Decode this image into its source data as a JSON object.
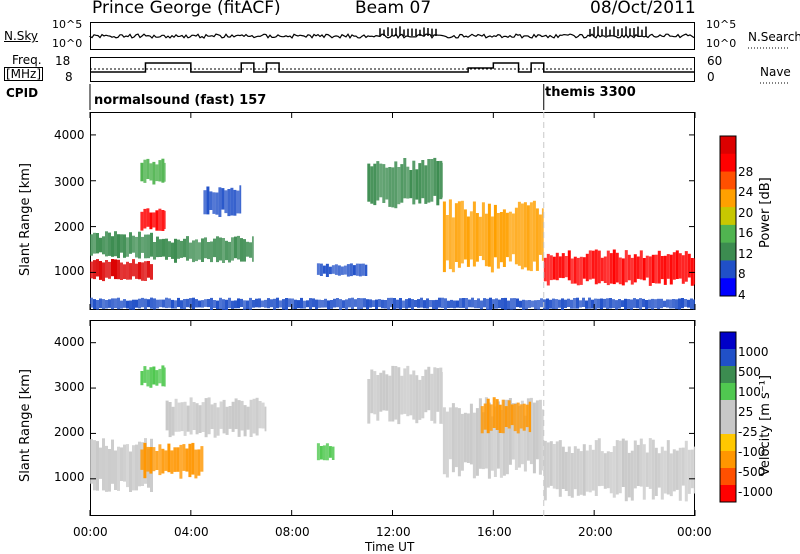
{
  "header": {
    "station": "Prince George (fitACF)",
    "beam": "Beam 07",
    "date": "08/Oct/2011"
  },
  "panels": {
    "nsky": {
      "label": "N.Sky",
      "ticks": [
        "10^5",
        "10^0"
      ],
      "right_label": "N.Search",
      "right_ticks": [
        "10^5",
        "10^0"
      ]
    },
    "freq": {
      "label_line1": "Freq.",
      "label_line2": "[MHz]",
      "ticks": [
        "18",
        "8"
      ],
      "right_label": "Nave",
      "right_ticks": [
        "60",
        "0"
      ]
    },
    "cpid": {
      "label": "CPID",
      "modes": [
        "normalsound (fast) 157",
        "themis 3300"
      ]
    }
  },
  "colors": {
    "power_scale": [
      "#0000ff",
      "#2050c8",
      "#3c8c50",
      "#50b450",
      "#c8c800",
      "#ffa000",
      "#ff5000",
      "#ff0000",
      "#dc0000"
    ],
    "velocity_scale": [
      "#ff0000",
      "#ff5000",
      "#ff9600",
      "#ffc800",
      "#c8c8c8",
      "#c8c8c8",
      "#50c850",
      "#3c8c50",
      "#2050c8",
      "#0000c8"
    ],
    "ground_scatter": "#c8c8c8"
  },
  "chart_data": [
    {
      "type": "heatmap",
      "title": "Power",
      "xlabel": "Time UT",
      "ylabel": "Slant Range [km]",
      "ylim": [
        180,
        4500
      ],
      "yticks": [
        "4000",
        "3000",
        "2000",
        "1000"
      ],
      "xticks": [
        "00:00",
        "04:00",
        "08:00",
        "12:00",
        "16:00",
        "20:00",
        "00:00"
      ],
      "colorbar": {
        "label": "Power [dB]",
        "ticks": [
          "28",
          "24",
          "20",
          "16",
          "12",
          "8",
          "4"
        ]
      },
      "regions": [
        {
          "t0": 0.0,
          "t1": 2.5,
          "r0": 800,
          "r1": 1300,
          "level": 28
        },
        {
          "t0": 0.0,
          "t1": 2.5,
          "r0": 1300,
          "r1": 1900,
          "level": 10
        },
        {
          "t0": 2.0,
          "t1": 3.0,
          "r0": 1900,
          "r1": 2400,
          "level": 26
        },
        {
          "t0": 2.5,
          "t1": 6.5,
          "r0": 1200,
          "r1": 1800,
          "level": 10
        },
        {
          "t0": 2.0,
          "t1": 3.0,
          "r0": 2900,
          "r1": 3500,
          "level": 12
        },
        {
          "t0": 4.5,
          "t1": 6.0,
          "r0": 2200,
          "r1": 2900,
          "level": 6
        },
        {
          "t0": 9.0,
          "t1": 11.0,
          "r0": 900,
          "r1": 1200,
          "level": 6
        },
        {
          "t0": 11.0,
          "t1": 14.0,
          "r0": 2400,
          "r1": 3500,
          "level": 8
        },
        {
          "t0": 14.0,
          "t1": 18.0,
          "r0": 1000,
          "r1": 2600,
          "level": 20
        },
        {
          "t0": 18.0,
          "t1": 24.0,
          "r0": 700,
          "r1": 1500,
          "level": 26
        },
        {
          "t0": 0.0,
          "t1": 24.0,
          "r0": 180,
          "r1": 450,
          "level": 6
        }
      ]
    },
    {
      "type": "heatmap",
      "title": "Velocity",
      "xlabel": "Time UT",
      "ylabel": "Slant Range [km]",
      "ylim": [
        180,
        4500
      ],
      "yticks": [
        "4000",
        "3000",
        "2000",
        "1000"
      ],
      "xticks": [
        "00:00",
        "04:00",
        "08:00",
        "12:00",
        "16:00",
        "20:00",
        "00:00"
      ],
      "colorbar": {
        "label": "Velocity [m s⁻¹]",
        "ticks": [
          "1000",
          "500",
          "100",
          "25",
          "-25",
          "-100",
          "-500",
          "-1000"
        ]
      },
      "regions": [
        {
          "t0": 0.0,
          "t1": 2.5,
          "r0": 700,
          "r1": 1900,
          "level": 0
        },
        {
          "t0": 2.0,
          "t1": 4.5,
          "r0": 1000,
          "r1": 1800,
          "level": -300
        },
        {
          "t0": 3.0,
          "t1": 7.0,
          "r0": 1900,
          "r1": 2800,
          "level": 0
        },
        {
          "t0": 2.0,
          "t1": 3.0,
          "r0": 3000,
          "r1": 3500,
          "level": 200
        },
        {
          "t0": 9.0,
          "t1": 9.7,
          "r0": 1400,
          "r1": 1800,
          "level": 300
        },
        {
          "t0": 11.0,
          "t1": 14.0,
          "r0": 2200,
          "r1": 3500,
          "level": 0
        },
        {
          "t0": 14.0,
          "t1": 18.0,
          "r0": 1000,
          "r1": 2800,
          "level": 0
        },
        {
          "t0": 15.5,
          "t1": 17.5,
          "r0": 2000,
          "r1": 2800,
          "level": -300
        },
        {
          "t0": 18.0,
          "t1": 24.0,
          "r0": 500,
          "r1": 1900,
          "level": 0
        }
      ]
    }
  ],
  "scan_boundary_ut": 18.0
}
